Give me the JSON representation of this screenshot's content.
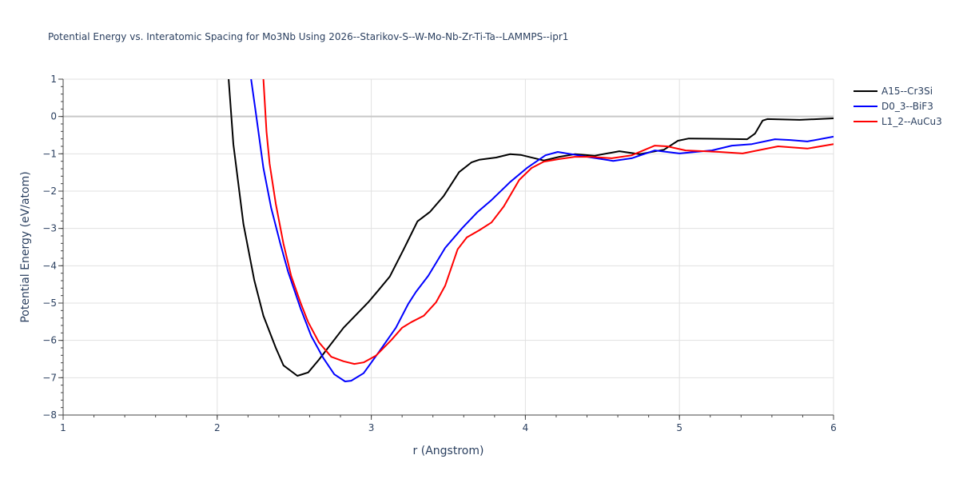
{
  "chart_data": {
    "type": "line",
    "title": "Potential Energy vs. Interatomic Spacing for Mo3Nb Using 2026--Starikov-S--W-Mo-Nb-Zr-Ti-Ta--LAMMPS--ipr1",
    "xlabel": "r (Angstrom)",
    "ylabel": "Potential Energy (eV/atom)",
    "xlim": [
      1,
      6
    ],
    "ylim": [
      -8,
      1
    ],
    "xticks": [
      1,
      2,
      3,
      4,
      5,
      6
    ],
    "yticks": [
      1,
      0,
      -1,
      -2,
      -3,
      -4,
      -5,
      -6,
      -7,
      -8
    ],
    "xtick_labels": [
      "1",
      "2",
      "3",
      "4",
      "5",
      "6"
    ],
    "ytick_labels": [
      "1",
      "0",
      "−1",
      "−2",
      "−3",
      "−4",
      "−5",
      "−6",
      "−7",
      "−8"
    ],
    "grid": true,
    "legend_position": "top-right",
    "series": [
      {
        "name": "A15--Cr3Si",
        "color": "#000000",
        "x": [
          2.074,
          2.105,
          2.17,
          2.24,
          2.3,
          2.38,
          2.43,
          2.52,
          2.59,
          2.66,
          2.82,
          2.98,
          3.05,
          3.12,
          3.21,
          3.3,
          3.38,
          3.47,
          3.57,
          3.65,
          3.7,
          3.81,
          3.9,
          3.97,
          4.12,
          4.22,
          4.32,
          4.45,
          4.61,
          4.74,
          4.9,
          4.99,
          5.06,
          5.44,
          5.49,
          5.54,
          5.57,
          5.78,
          6.0
        ],
        "y": [
          1,
          -0.74,
          -2.88,
          -4.38,
          -5.34,
          -6.2,
          -6.67,
          -6.95,
          -6.86,
          -6.52,
          -5.66,
          -4.98,
          -4.64,
          -4.29,
          -3.56,
          -2.81,
          -2.56,
          -2.13,
          -1.49,
          -1.23,
          -1.16,
          -1.1,
          -1.01,
          -1.03,
          -1.18,
          -1.08,
          -1.01,
          -1.05,
          -0.93,
          -1.01,
          -0.89,
          -0.65,
          -0.59,
          -0.61,
          -0.46,
          -0.11,
          -0.07,
          -0.09,
          -0.05
        ]
      },
      {
        "name": "D0_3--BiF3",
        "color": "#0000ff",
        "x": [
          2.22,
          2.25,
          2.3,
          2.35,
          2.41,
          2.46,
          2.54,
          2.61,
          2.69,
          2.76,
          2.83,
          2.87,
          2.95,
          3.05,
          3.16,
          3.24,
          3.29,
          3.37,
          3.48,
          3.59,
          3.69,
          3.78,
          3.9,
          4.01,
          4.13,
          4.21,
          4.3,
          4.43,
          4.57,
          4.69,
          4.84,
          5.0,
          5.21,
          5.34,
          5.47,
          5.62,
          5.72,
          5.83,
          6.0
        ],
        "y": [
          1,
          0.12,
          -1.38,
          -2.45,
          -3.41,
          -4.16,
          -5.13,
          -5.88,
          -6.48,
          -6.91,
          -7.1,
          -7.08,
          -6.88,
          -6.31,
          -5.66,
          -5.02,
          -4.7,
          -4.27,
          -3.52,
          -2.99,
          -2.56,
          -2.24,
          -1.76,
          -1.38,
          -1.04,
          -0.95,
          -1.01,
          -1.1,
          -1.19,
          -1.12,
          -0.91,
          -0.99,
          -0.91,
          -0.78,
          -0.74,
          -0.61,
          -0.63,
          -0.67,
          -0.54
        ]
      },
      {
        "name": "L1_2--AuCu3",
        "color": "#ff0000",
        "x": [
          2.3,
          2.32,
          2.34,
          2.38,
          2.43,
          2.48,
          2.54,
          2.59,
          2.66,
          2.74,
          2.82,
          2.89,
          2.95,
          3.03,
          3.13,
          3.2,
          3.26,
          3.34,
          3.42,
          3.48,
          3.56,
          3.62,
          3.7,
          3.78,
          3.86,
          3.96,
          4.04,
          4.12,
          4.22,
          4.32,
          4.43,
          4.56,
          4.69,
          4.84,
          4.92,
          5.04,
          5.26,
          5.41,
          5.64,
          5.83,
          6.0
        ],
        "y": [
          1,
          -0.41,
          -1.27,
          -2.34,
          -3.41,
          -4.27,
          -4.98,
          -5.51,
          -6.05,
          -6.44,
          -6.56,
          -6.63,
          -6.59,
          -6.41,
          -5.99,
          -5.66,
          -5.51,
          -5.34,
          -4.98,
          -4.53,
          -3.56,
          -3.24,
          -3.05,
          -2.84,
          -2.41,
          -1.7,
          -1.38,
          -1.21,
          -1.14,
          -1.08,
          -1.08,
          -1.12,
          -1.04,
          -0.78,
          -0.8,
          -0.91,
          -0.95,
          -0.99,
          -0.8,
          -0.86,
          -0.74
        ]
      }
    ]
  }
}
